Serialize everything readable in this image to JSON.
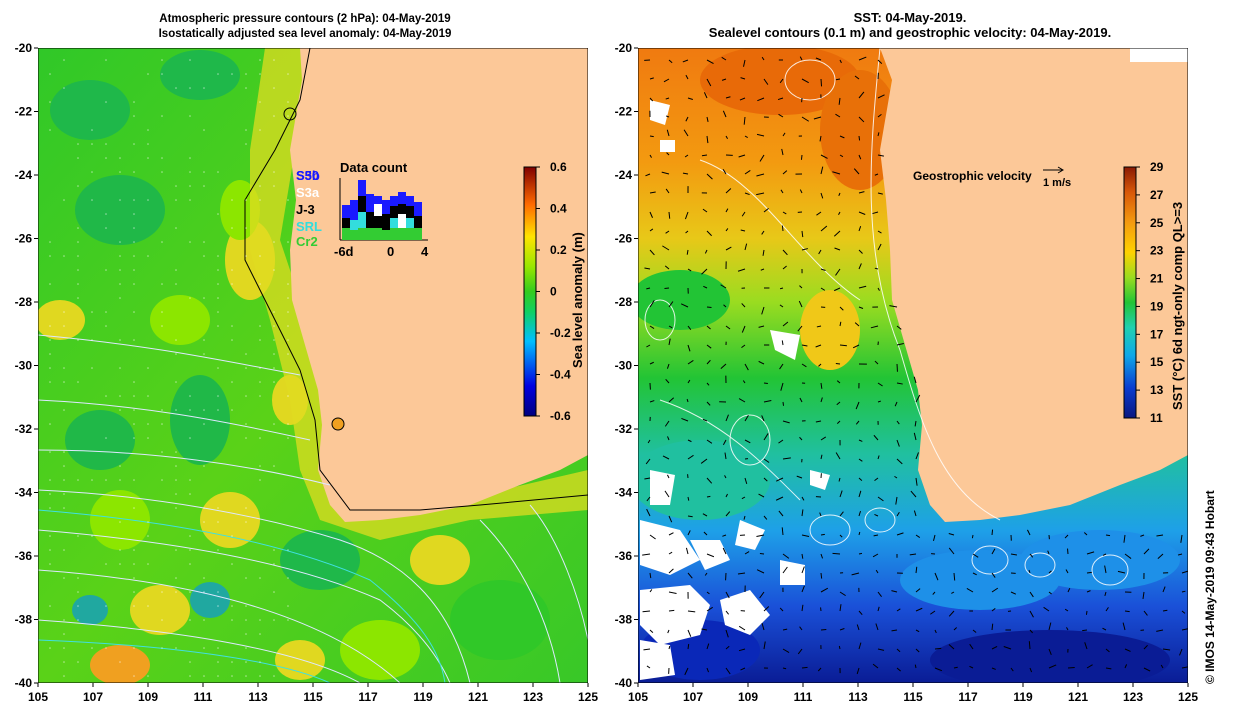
{
  "left_map": {
    "title_line1": "Atmospheric pressure contours (2 hPa): 04-May-2019",
    "title_line2": "Isostatically adjusted sea level anomaly: 04-May-2019",
    "colorbar_label": "Sea level anomaly (m)",
    "colorbar_ticks": [
      "0.6",
      "0.4",
      "0.2",
      "0",
      "-0.2",
      "-0.4",
      "-0.6"
    ],
    "colorbar_range": [
      -0.6,
      0.6
    ],
    "legend_satellites": [
      {
        "label": "S3b",
        "color": "#1a1aff"
      },
      {
        "label": "S3a",
        "color": "#ffffff"
      },
      {
        "label": "J-3",
        "color": "#000000"
      },
      {
        "label": "SRL",
        "color": "#33dddd"
      },
      {
        "label": "Cr2",
        "color": "#33cc33"
      }
    ],
    "legend_overlap_label": "S50",
    "data_count": {
      "title": "Data count",
      "x_ticks": [
        "-6d",
        "0",
        "4"
      ]
    }
  },
  "right_map": {
    "title_line1": "SST: 04-May-2019.",
    "title_line2": "Sealevel contours (0.1 m) and geostrophic velocity: 04-May-2019.",
    "velocity_legend": "Geostrophic velocity",
    "velocity_scale": "1 m/s",
    "colorbar_label": "SST (°C) 6d ngt-only comp QL>=3",
    "colorbar_ticks": [
      "29",
      "27",
      "25",
      "23",
      "21",
      "19",
      "17",
      "15",
      "13",
      "11"
    ],
    "colorbar_range": [
      11,
      29
    ]
  },
  "axes": {
    "x_ticks": [
      "105",
      "107",
      "109",
      "111",
      "113",
      "115",
      "117",
      "119",
      "121",
      "123",
      "125"
    ],
    "y_ticks": [
      "-20",
      "-22",
      "-24",
      "-26",
      "-28",
      "-30",
      "-32",
      "-34",
      "-36",
      "-38",
      "-40"
    ],
    "lon_range": [
      105,
      125
    ],
    "lat_range": [
      -40,
      -20
    ]
  },
  "credit": "© IMOS 14-May-2019 09:43 Hobart",
  "colors": {
    "land": "#fcc898",
    "sla_green": "#33cc1e",
    "sla_light": "#8ce600",
    "sla_yellow": "#e4e020",
    "sst_orange": "#f39a10",
    "sst_green": "#22c435",
    "sst_blue": "#1a70e0",
    "sst_navy": "#0a1c95"
  }
}
